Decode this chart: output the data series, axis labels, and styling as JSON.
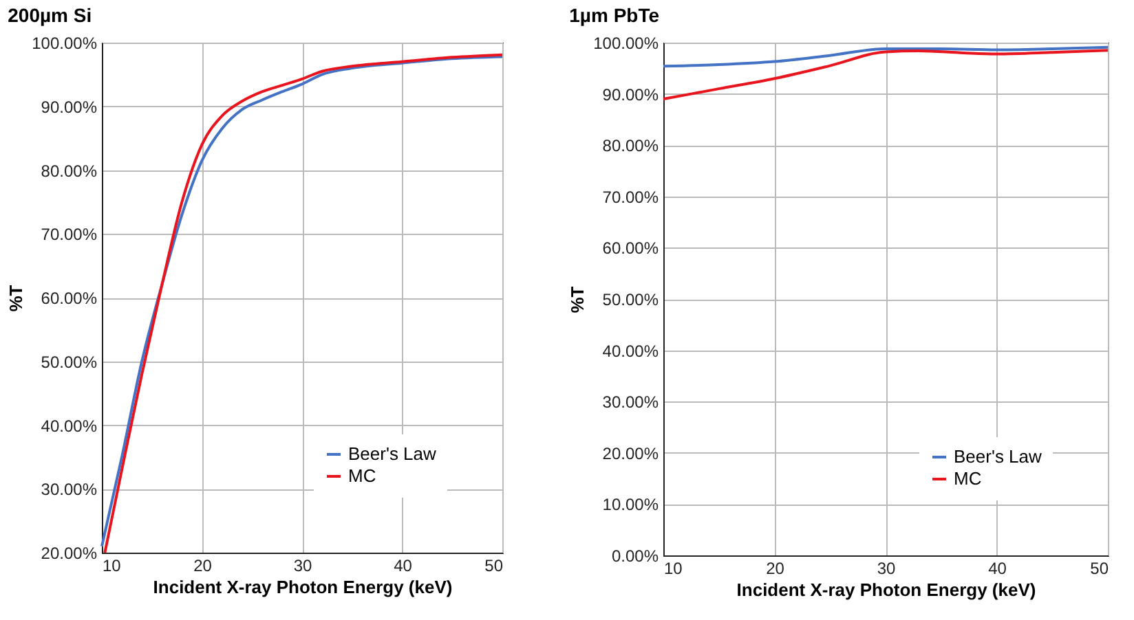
{
  "chart_data": [
    {
      "type": "line",
      "title": "200µm Si",
      "xlabel": "Incident X-ray Photon Energy (keV)",
      "ylabel": "%T",
      "xlim": [
        10,
        50
      ],
      "xticks": [
        10,
        20,
        30,
        40,
        50
      ],
      "ylim": [
        20,
        100
      ],
      "yticks": [
        {
          "value": 20,
          "label": "20.00%"
        },
        {
          "value": 30,
          "label": "30.00%"
        },
        {
          "value": 40,
          "label": "40.00%"
        },
        {
          "value": 50,
          "label": "50.00%"
        },
        {
          "value": 60,
          "label": "60.00%"
        },
        {
          "value": 70,
          "label": "70.00%"
        },
        {
          "value": 80,
          "label": "80.00%"
        },
        {
          "value": 90,
          "label": "90.00%"
        },
        {
          "value": 100,
          "label": "100.00%"
        }
      ],
      "grid": true,
      "legend": "bottom right",
      "series": [
        {
          "name": "Beer's Law",
          "color": "#4472c4",
          "x": [
            10,
            12,
            14,
            16,
            18,
            20,
            22,
            24,
            26,
            28,
            30,
            32,
            35,
            40,
            45,
            50
          ],
          "values": [
            21,
            35,
            50,
            62,
            73,
            81.5,
            86.5,
            89.5,
            91,
            92.3,
            93.5,
            95,
            96,
            96.8,
            97.5,
            97.8
          ]
        },
        {
          "name": "MC",
          "color": "#e8141e",
          "x": [
            10.3,
            12,
            14,
            16,
            18,
            20,
            22,
            24,
            26,
            28,
            30,
            32,
            35,
            40,
            45,
            50
          ],
          "values": [
            20,
            33,
            48,
            62,
            75,
            84,
            88.5,
            90.8,
            92.3,
            93.3,
            94.3,
            95.5,
            96.3,
            97,
            97.7,
            98.1
          ]
        }
      ]
    },
    {
      "type": "line",
      "title": "1µm PbTe",
      "xlabel": "Incident X-ray Photon Energy (keV)",
      "ylabel": "%T",
      "xlim": [
        10,
        50
      ],
      "xticks": [
        10,
        20,
        30,
        40,
        50
      ],
      "ylim": [
        0,
        100
      ],
      "yticks": [
        {
          "value": 0,
          "label": "0.00%"
        },
        {
          "value": 10,
          "label": "10.00%"
        },
        {
          "value": 20,
          "label": "20.00%"
        },
        {
          "value": 30,
          "label": "30.00%"
        },
        {
          "value": 40,
          "label": "40.00%"
        },
        {
          "value": 50,
          "label": "50.00%"
        },
        {
          "value": 60,
          "label": "60.00%"
        },
        {
          "value": 70,
          "label": "70.00%"
        },
        {
          "value": 80,
          "label": "80.00%"
        },
        {
          "value": 90,
          "label": "90.00%"
        },
        {
          "value": 100,
          "label": "100.00%"
        }
      ],
      "grid": true,
      "legend": "bottom right",
      "series": [
        {
          "name": "Beer's Law",
          "color": "#4472c4",
          "x": [
            10,
            15,
            20,
            25,
            30,
            35,
            40,
            45,
            50
          ],
          "values": [
            95.4,
            95.7,
            96.3,
            97.5,
            98.8,
            98.8,
            98.6,
            98.8,
            99.1
          ]
        },
        {
          "name": "MC",
          "color": "#e8141e",
          "x": [
            10,
            15,
            20,
            25,
            30,
            33,
            37,
            40,
            45,
            50
          ],
          "values": [
            89,
            91,
            93,
            95.5,
            98.2,
            98.4,
            98,
            97.8,
            98.1,
            98.5
          ]
        }
      ]
    }
  ]
}
